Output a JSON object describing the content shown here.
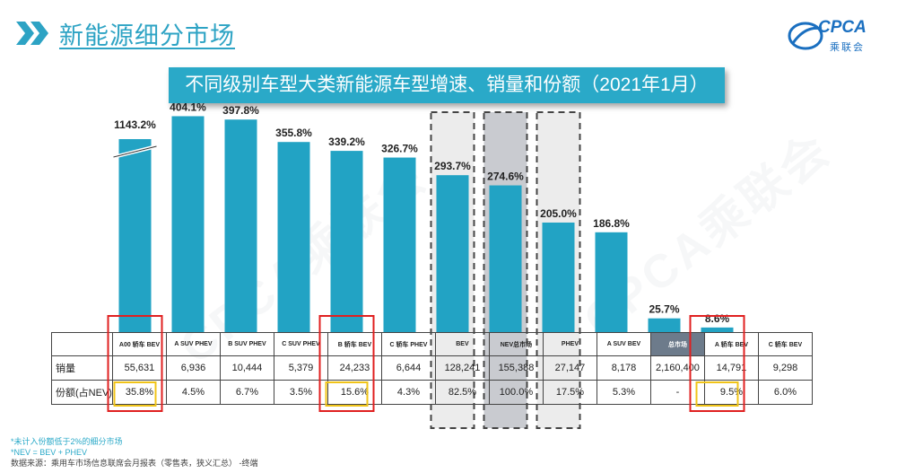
{
  "header": {
    "title": "新能源细分市场",
    "logo_text": "CPCA",
    "logo_sub": "乘联会"
  },
  "banner": {
    "title": "不同级别车型大类新能源车型增速、销量和份额（2021年1月）"
  },
  "watermark": "CPCA乘联会",
  "table": {
    "sales_label": "销量",
    "share_label": "份额(占NEV)"
  },
  "chart_data": {
    "type": "bar",
    "title": "不同级别车型大类新能源车型增速、销量和份额（2021年1月）",
    "categories": [
      "A00 轿车 BEV",
      "A SUV PHEV",
      "B SUV PHEV",
      "C SUV PHEV",
      "B 轿车 BEV",
      "C 轿车 PHEV",
      "BEV",
      "NEV总市场",
      "PHEV",
      "A SUV BEV",
      "总市场",
      "A 轿车 BEV",
      "C 轿车 BEV"
    ],
    "series": [
      {
        "values": [
          1143.2,
          404.1,
          397.8,
          355.8,
          339.2,
          326.7,
          293.7,
          274.6,
          205.0,
          186.8,
          25.7,
          8.6,
          null
        ],
        "labels": [
          "1143.2%",
          "404.1%",
          "397.8%",
          "355.8%",
          "339.2%",
          "326.7%",
          "293.7%",
          "274.6%",
          "205.0%",
          "186.8%",
          "25.7%",
          "8.6%",
          ""
        ]
      }
    ],
    "sales": [
      "55,631",
      "6,936",
      "10,444",
      "5,379",
      "24,233",
      "6,644",
      "128,241",
      "155,388",
      "27,147",
      "8,178",
      "2,160,400",
      "14,791",
      "9,298"
    ],
    "share": [
      "35.8%",
      "4.5%",
      "6.7%",
      "3.5%",
      "15.6%",
      "4.3%",
      "82.5%",
      "100.0%",
      "17.5%",
      "5.3%",
      "-",
      "9.5%",
      "6.0%"
    ],
    "highlight_red": [
      0,
      4,
      11
    ],
    "dashed_boxes": [
      6,
      7,
      8
    ],
    "axis_break_on": [
      0
    ],
    "colors": {
      "bar": "#22a3c4",
      "highlight_red": "#e02020",
      "highlight_yellow": "#f0c419",
      "dashed_fill": "#ececec",
      "dashed_fill_dark": "#c9cbd0"
    }
  },
  "footnotes": {
    "note1": "*未计入份额低于2%的细分市场",
    "note2": "*NEV = BEV + PHEV",
    "source": "数据来源：乘用车市场信息联席会月报表（零售表，狭义汇总）  -终端"
  }
}
